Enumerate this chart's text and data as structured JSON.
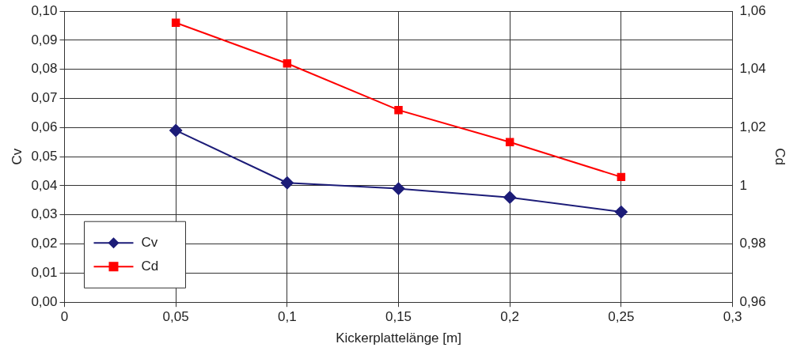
{
  "chart_data": {
    "type": "line",
    "xlabel": "Kickerplattelänge [m]",
    "ylabel": "Cv",
    "y2label": "Cd",
    "x": [
      0.05,
      0.1,
      0.15,
      0.2,
      0.25
    ],
    "series": [
      {
        "name": "Cv",
        "color": "#1c1c78",
        "values": [
          0.059,
          0.041,
          0.039,
          0.036,
          0.031
        ],
        "marker": "diamond"
      },
      {
        "name": "Cd",
        "color": "#ff0000",
        "values": [
          1.056,
          1.042,
          1.026,
          1.015,
          1.003
        ],
        "marker": "square",
        "axis": "y2"
      }
    ],
    "xlim": [
      0,
      0.3
    ],
    "xticks": [
      0,
      {
        "value": 0.05,
        "label": "0,05"
      },
      {
        "value": 0.1,
        "label": "0,1"
      },
      {
        "value": 0.15,
        "label": "0,15"
      },
      {
        "value": 0.2,
        "label": "0,2"
      },
      {
        "value": 0.25,
        "label": "0,25"
      },
      {
        "value": 0.3,
        "label": "0,3"
      }
    ],
    "ylim": [
      0,
      0.1
    ],
    "yticks": [
      {
        "value": 0,
        "label": "0,00"
      },
      {
        "value": 0.01,
        "label": "0,01"
      },
      {
        "value": 0.02,
        "label": "0,02"
      },
      {
        "value": 0.03,
        "label": "0,03"
      },
      {
        "value": 0.04,
        "label": "0,04"
      },
      {
        "value": 0.05,
        "label": "0,05"
      },
      {
        "value": 0.06,
        "label": "0,06"
      },
      {
        "value": 0.07,
        "label": "0,07"
      },
      {
        "value": 0.08,
        "label": "0,08"
      },
      {
        "value": 0.09,
        "label": "0,09"
      },
      {
        "value": 0.1,
        "label": "0,10"
      }
    ],
    "y2lim": [
      0.96,
      1.06
    ],
    "y2ticks": [
      {
        "value": 0.96,
        "label": "0,96"
      },
      {
        "value": 0.98,
        "label": "0,98"
      },
      1,
      {
        "value": 1.02,
        "label": "1,02"
      },
      {
        "value": 1.04,
        "label": "1,04"
      },
      {
        "value": 1.06,
        "label": "1,06"
      }
    ],
    "grid": true,
    "legend": "bottom left",
    "line_style": "solid"
  }
}
